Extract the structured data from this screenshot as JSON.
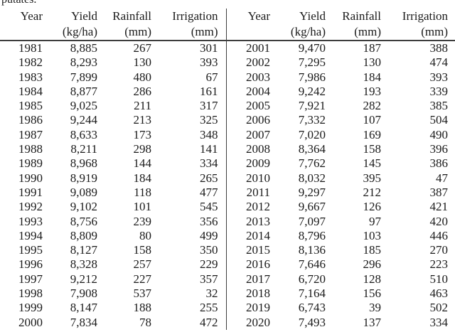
{
  "page": {
    "clipped_text_fragment": "putates."
  },
  "table": {
    "header": {
      "labels": [
        "Year",
        "Yield",
        "Rainfall",
        "Irrigation",
        "Year",
        "Yield",
        "Rainfall",
        "Irrigation"
      ],
      "units": [
        "",
        "(kg/ha)",
        "(mm)",
        "(mm)",
        "",
        "(kg/ha)",
        "(mm)",
        "(mm)"
      ]
    },
    "left_rows": [
      [
        "1981",
        "8,885",
        "267",
        "301"
      ],
      [
        "1982",
        "8,293",
        "130",
        "393"
      ],
      [
        "1983",
        "7,899",
        "480",
        "67"
      ],
      [
        "1984",
        "8,877",
        "286",
        "161"
      ],
      [
        "1985",
        "9,025",
        "211",
        "317"
      ],
      [
        "1986",
        "9,244",
        "213",
        "325"
      ],
      [
        "1987",
        "8,633",
        "173",
        "348"
      ],
      [
        "1988",
        "8,211",
        "298",
        "141"
      ],
      [
        "1989",
        "8,968",
        "144",
        "334"
      ],
      [
        "1990",
        "8,919",
        "184",
        "265"
      ],
      [
        "1991",
        "9,089",
        "118",
        "477"
      ],
      [
        "1992",
        "9,102",
        "101",
        "545"
      ],
      [
        "1993",
        "8,756",
        "239",
        "356"
      ],
      [
        "1994",
        "8,809",
        "80",
        "499"
      ],
      [
        "1995",
        "8,127",
        "158",
        "350"
      ],
      [
        "1996",
        "8,328",
        "257",
        "229"
      ],
      [
        "1997",
        "9,212",
        "227",
        "357"
      ],
      [
        "1998",
        "7,908",
        "537",
        "32"
      ],
      [
        "1999",
        "8,147",
        "188",
        "255"
      ],
      [
        "2000",
        "7,834",
        "78",
        "472"
      ]
    ],
    "right_rows": [
      [
        "2001",
        "9,470",
        "187",
        "388"
      ],
      [
        "2002",
        "7,295",
        "130",
        "474"
      ],
      [
        "2003",
        "7,986",
        "184",
        "393"
      ],
      [
        "2004",
        "9,242",
        "193",
        "339"
      ],
      [
        "2005",
        "7,921",
        "282",
        "385"
      ],
      [
        "2006",
        "7,332",
        "107",
        "504"
      ],
      [
        "2007",
        "7,020",
        "169",
        "490"
      ],
      [
        "2008",
        "8,364",
        "158",
        "396"
      ],
      [
        "2009",
        "7,762",
        "145",
        "386"
      ],
      [
        "2010",
        "8,032",
        "395",
        "47"
      ],
      [
        "2011",
        "9,297",
        "212",
        "387"
      ],
      [
        "2012",
        "9,667",
        "126",
        "421"
      ],
      [
        "2013",
        "7,097",
        "97",
        "420"
      ],
      [
        "2014",
        "8,796",
        "103",
        "446"
      ],
      [
        "2015",
        "8,136",
        "185",
        "270"
      ],
      [
        "2016",
        "7,646",
        "296",
        "223"
      ],
      [
        "2017",
        "6,720",
        "128",
        "510"
      ],
      [
        "2018",
        "7,164",
        "156",
        "463"
      ],
      [
        "2019",
        "6,743",
        "39",
        "502"
      ],
      [
        "2020",
        "7,493",
        "137",
        "334"
      ]
    ]
  },
  "colors": {
    "text": "#1a1a1a",
    "rule": "#3d3d3d",
    "background": "#ffffff"
  }
}
